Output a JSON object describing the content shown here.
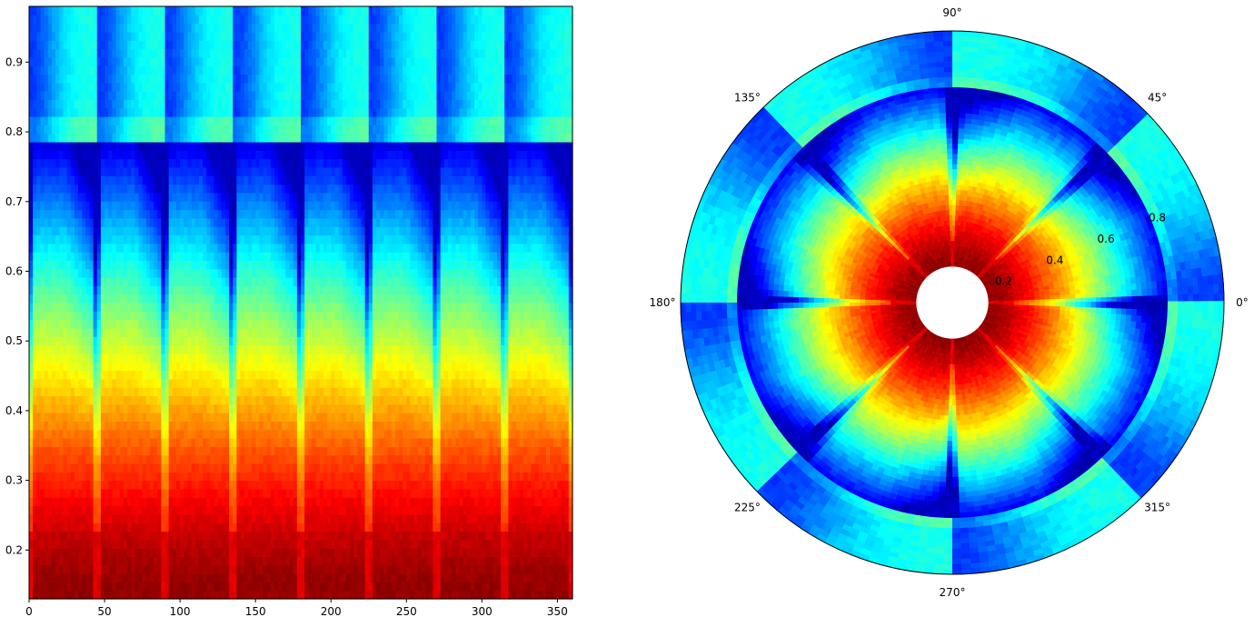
{
  "chart_data": [
    {
      "type": "heatmap",
      "title": "",
      "xlabel": "",
      "ylabel": "",
      "xlim": [
        0,
        360
      ],
      "ylim": [
        0.13,
        0.98
      ],
      "xticks": [
        0,
        50,
        100,
        150,
        200,
        250,
        300,
        350
      ],
      "yticks": [
        0.2,
        0.3,
        0.4,
        0.5,
        0.6,
        0.7,
        0.8,
        0.9
      ],
      "colormap": "jet",
      "periods": 8,
      "period_deg": 45,
      "value_range": [
        0,
        1
      ],
      "grid": false
    },
    {
      "type": "heatmap",
      "projection": "polar",
      "title": "",
      "theta_ticks": [
        "0°",
        "45°",
        "90°",
        "135°",
        "180°",
        "225°",
        "270°",
        "315°"
      ],
      "theta_tick_values": [
        0,
        45,
        90,
        135,
        180,
        225,
        270,
        315
      ],
      "r_ticks": [
        "0.2",
        "0.4",
        "0.6",
        "0.8"
      ],
      "r_tick_values": [
        0.2,
        0.4,
        0.6,
        0.8
      ],
      "rlim": [
        0.13,
        0.98
      ],
      "r_label_angle_deg": 22.5,
      "colormap": "jet",
      "value_range": [
        0,
        1
      ],
      "grid": false
    }
  ]
}
